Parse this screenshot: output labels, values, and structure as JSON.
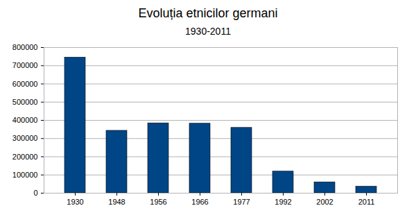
{
  "chart_data": {
    "type": "bar",
    "title": "Evoluția etnicilor germani",
    "subtitle": "1930-2011",
    "categories": [
      "1930",
      "1948",
      "1956",
      "1966",
      "1977",
      "1992",
      "2002",
      "2011"
    ],
    "values": [
      745000,
      343000,
      384000,
      382000,
      359000,
      119000,
      60000,
      36000
    ],
    "color": "#004586",
    "ylim": [
      0,
      800000
    ],
    "yticks": [
      0,
      100000,
      200000,
      300000,
      400000,
      500000,
      600000,
      700000,
      800000
    ],
    "grid": true
  }
}
